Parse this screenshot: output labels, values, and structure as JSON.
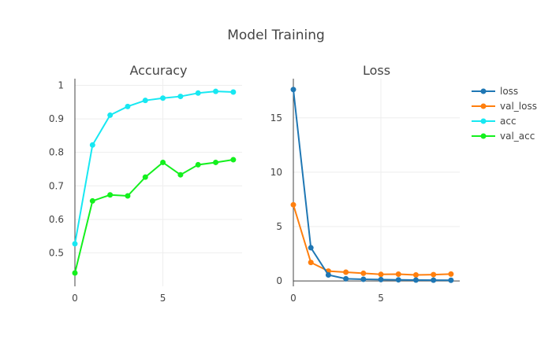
{
  "chart_data": {
    "title": "Model Training",
    "colors": {
      "loss": "#1f77b4",
      "val_loss": "#ff7f0e",
      "acc": "#17e8f2",
      "val_acc": "#14f01e"
    },
    "legend": [
      "loss",
      "val_loss",
      "acc",
      "val_acc"
    ],
    "subplots": [
      {
        "type": "line",
        "title": "Accuracy",
        "x": [
          0,
          1,
          2,
          3,
          4,
          5,
          6,
          7,
          8,
          9
        ],
        "xlim": [
          0,
          9.5
        ],
        "ylim": [
          0.4,
          1.02
        ],
        "xticks": [
          0,
          5
        ],
        "yticks": [
          0.5,
          0.6,
          0.7,
          0.8,
          0.9,
          1
        ],
        "ytick_labels": [
          "0.5",
          "0.6",
          "0.7",
          "0.8",
          "0.9",
          "1"
        ],
        "series": [
          {
            "name": "acc",
            "values": [
              0.527,
              0.822,
              0.911,
              0.937,
              0.955,
              0.962,
              0.967,
              0.977,
              0.982,
              0.98
            ]
          },
          {
            "name": "val_acc",
            "values": [
              0.44,
              0.655,
              0.673,
              0.67,
              0.726,
              0.77,
              0.733,
              0.763,
              0.77,
              0.778
            ]
          }
        ]
      },
      {
        "type": "line",
        "title": "Loss",
        "x": [
          0,
          1,
          2,
          3,
          4,
          5,
          6,
          7,
          8,
          9
        ],
        "xlim": [
          0,
          9.5
        ],
        "ylim": [
          -0.5,
          18.6
        ],
        "xticks": [
          0,
          5
        ],
        "yticks": [
          0,
          5,
          10,
          15
        ],
        "ytick_labels": [
          "0",
          "5",
          "10",
          "15"
        ],
        "series": [
          {
            "name": "loss",
            "values": [
              17.6,
              3.05,
              0.55,
              0.2,
              0.15,
              0.12,
              0.1,
              0.08,
              0.07,
              0.06
            ]
          },
          {
            "name": "val_loss",
            "values": [
              7.0,
              1.7,
              0.9,
              0.8,
              0.7,
              0.6,
              0.62,
              0.55,
              0.58,
              0.63
            ]
          }
        ]
      }
    ]
  }
}
